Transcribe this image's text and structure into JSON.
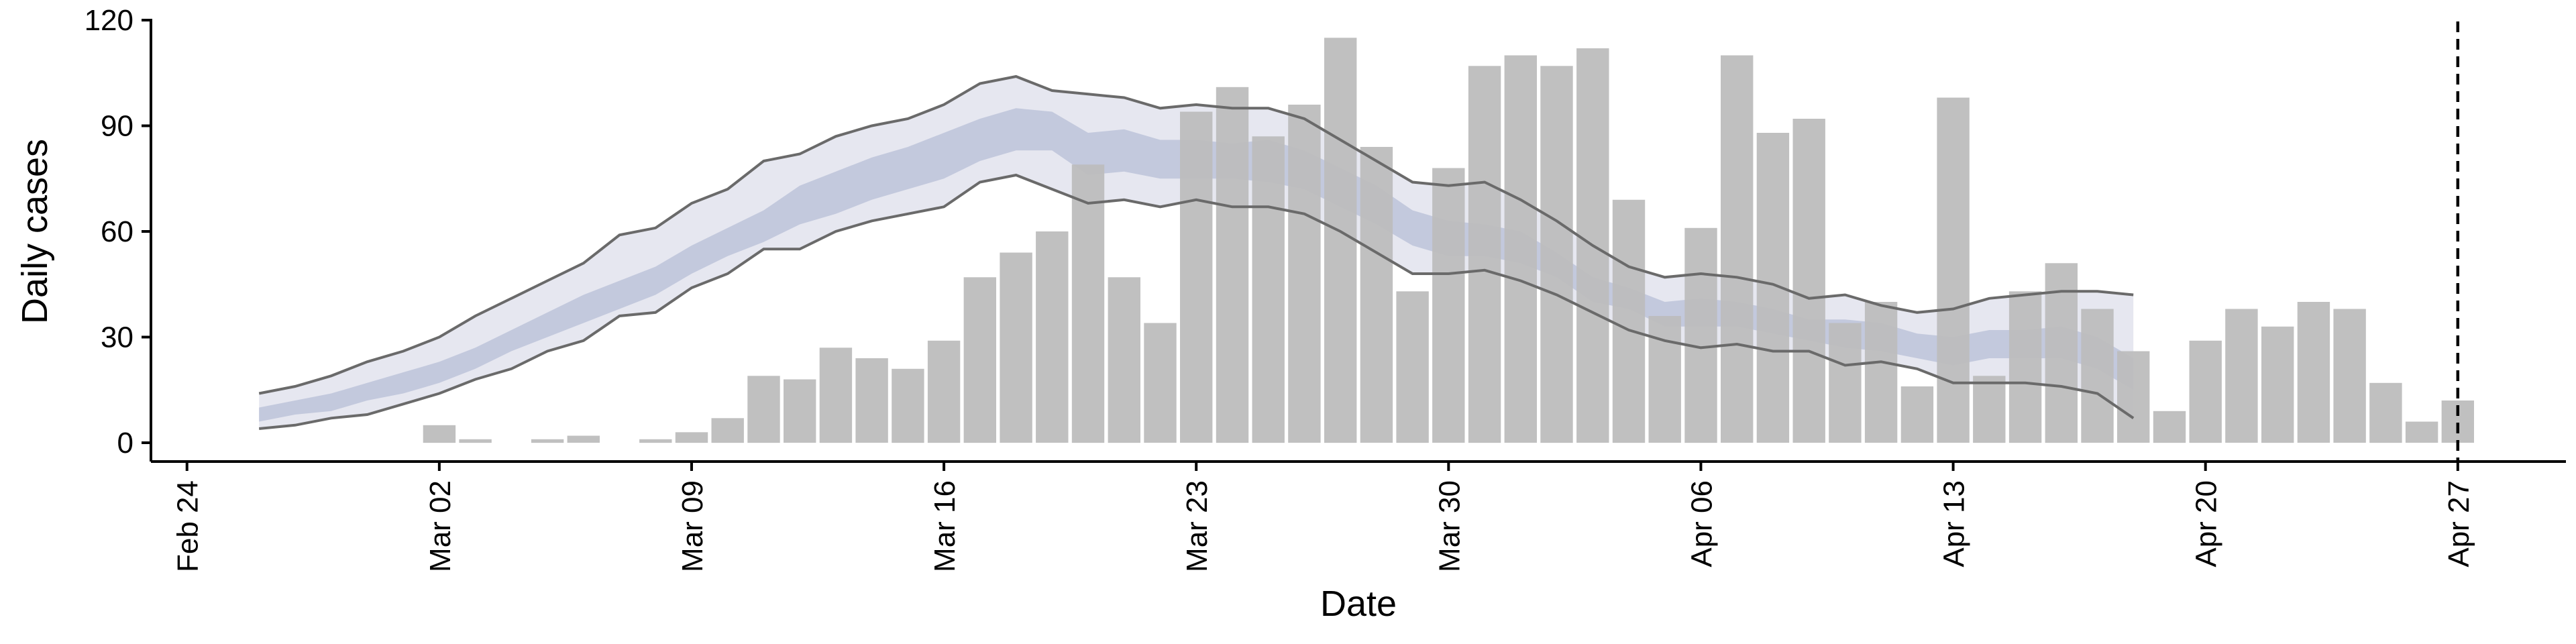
{
  "chart_data": {
    "type": "bar",
    "title": "",
    "xlabel": "Date",
    "ylabel": "Daily cases",
    "ylim": [
      0,
      120
    ],
    "yticks": [
      0,
      30,
      60,
      90,
      120
    ],
    "x_axis_type": "date",
    "year": 2020,
    "xlim": [
      "2020-02-23",
      "2020-04-30"
    ],
    "xticks": [
      {
        "date": "2020-02-24",
        "label": "Feb 24"
      },
      {
        "date": "2020-03-02",
        "label": "Mar 02"
      },
      {
        "date": "2020-03-09",
        "label": "Mar 09"
      },
      {
        "date": "2020-03-16",
        "label": "Mar 16"
      },
      {
        "date": "2020-03-23",
        "label": "Mar 23"
      },
      {
        "date": "2020-03-30",
        "label": "Mar 30"
      },
      {
        "date": "2020-04-06",
        "label": "Apr 06"
      },
      {
        "date": "2020-04-13",
        "label": "Apr 13"
      },
      {
        "date": "2020-04-20",
        "label": "Apr 20"
      },
      {
        "date": "2020-04-27",
        "label": "Apr 27"
      }
    ],
    "vertical_line_date": "2020-04-27",
    "grid": false,
    "colors": {
      "bars": "#bdbdbd",
      "outer_band": "#e6e7f0",
      "inner_band": "#c3c9dd",
      "outer_lines": "#6a6a6a",
      "vline": "#000000"
    },
    "bars": {
      "dates": [
        "2020-03-02",
        "2020-03-03",
        "2020-03-04",
        "2020-03-05",
        "2020-03-06",
        "2020-03-07",
        "2020-03-08",
        "2020-03-09",
        "2020-03-10",
        "2020-03-11",
        "2020-03-12",
        "2020-03-13",
        "2020-03-14",
        "2020-03-15",
        "2020-03-16",
        "2020-03-17",
        "2020-03-18",
        "2020-03-19",
        "2020-03-20",
        "2020-03-21",
        "2020-03-22",
        "2020-03-23",
        "2020-03-24",
        "2020-03-25",
        "2020-03-26",
        "2020-03-27",
        "2020-03-28",
        "2020-03-29",
        "2020-03-30",
        "2020-03-31",
        "2020-04-01",
        "2020-04-02",
        "2020-04-03",
        "2020-04-04",
        "2020-04-05",
        "2020-04-06",
        "2020-04-07",
        "2020-04-08",
        "2020-04-09",
        "2020-04-10",
        "2020-04-11",
        "2020-04-12",
        "2020-04-13",
        "2020-04-14",
        "2020-04-15",
        "2020-04-16",
        "2020-04-17",
        "2020-04-18",
        "2020-04-19",
        "2020-04-20",
        "2020-04-21",
        "2020-04-22",
        "2020-04-23",
        "2020-04-24",
        "2020-04-25",
        "2020-04-26",
        "2020-04-27"
      ],
      "values": [
        5,
        1,
        0,
        1,
        2,
        0,
        1,
        3,
        7,
        19,
        18,
        27,
        24,
        21,
        29,
        47,
        54,
        60,
        79,
        47,
        34,
        94,
        101,
        87,
        96,
        115,
        84,
        43,
        78,
        107,
        110,
        107,
        112,
        69,
        36,
        61,
        110,
        88,
        92,
        34,
        40,
        16,
        98,
        19,
        43,
        51,
        38,
        26,
        9,
        29,
        38,
        33,
        40,
        38,
        17,
        6,
        12
      ]
    },
    "bands": {
      "dates": [
        "2020-02-26",
        "2020-02-27",
        "2020-02-28",
        "2020-02-29",
        "2020-03-01",
        "2020-03-02",
        "2020-03-03",
        "2020-03-04",
        "2020-03-05",
        "2020-03-06",
        "2020-03-07",
        "2020-03-08",
        "2020-03-09",
        "2020-03-10",
        "2020-03-11",
        "2020-03-12",
        "2020-03-13",
        "2020-03-14",
        "2020-03-15",
        "2020-03-16",
        "2020-03-17",
        "2020-03-18",
        "2020-03-19",
        "2020-03-20",
        "2020-03-21",
        "2020-03-22",
        "2020-03-23",
        "2020-03-24",
        "2020-03-25",
        "2020-03-26",
        "2020-03-27",
        "2020-03-28",
        "2020-03-29",
        "2020-03-30",
        "2020-03-31",
        "2020-04-01",
        "2020-04-02",
        "2020-04-03",
        "2020-04-04",
        "2020-04-05",
        "2020-04-06",
        "2020-04-07",
        "2020-04-08",
        "2020-04-09",
        "2020-04-10",
        "2020-04-11",
        "2020-04-12",
        "2020-04-13",
        "2020-04-14",
        "2020-04-15",
        "2020-04-16",
        "2020-04-17",
        "2020-04-18"
      ],
      "outer_upper": [
        14,
        16,
        19,
        23,
        26,
        30,
        36,
        41,
        46,
        51,
        59,
        61,
        68,
        72,
        80,
        82,
        87,
        90,
        92,
        96,
        102,
        104,
        100,
        99,
        98,
        95,
        96,
        95,
        95,
        92,
        86,
        80,
        74,
        73,
        74,
        69,
        63,
        56,
        50,
        47,
        48,
        47,
        45,
        41,
        42,
        39,
        37,
        38,
        41,
        42,
        43,
        43,
        42
      ],
      "outer_lower": [
        4,
        5,
        7,
        8,
        11,
        14,
        18,
        21,
        26,
        29,
        36,
        37,
        44,
        48,
        55,
        55,
        60,
        63,
        65,
        67,
        74,
        76,
        72,
        68,
        69,
        67,
        69,
        67,
        67,
        65,
        60,
        54,
        48,
        48,
        49,
        46,
        42,
        37,
        32,
        29,
        27,
        28,
        26,
        26,
        22,
        23,
        21,
        17,
        17,
        17,
        16,
        14,
        7
      ],
      "inner_upper": [
        10,
        12,
        14,
        17,
        20,
        23,
        27,
        32,
        37,
        42,
        46,
        50,
        56,
        61,
        66,
        73,
        77,
        81,
        84,
        88,
        92,
        95,
        94,
        88,
        89,
        86,
        86,
        85,
        86,
        83,
        78,
        73,
        66,
        63,
        62,
        60,
        54,
        47,
        44,
        40,
        41,
        40,
        38,
        35,
        35,
        34,
        31,
        30,
        32,
        32,
        33,
        30,
        24
      ],
      "inner_lower": [
        6,
        8,
        9,
        12,
        14,
        17,
        21,
        26,
        30,
        34,
        38,
        42,
        48,
        53,
        57,
        62,
        65,
        69,
        72,
        75,
        80,
        83,
        83,
        76,
        77,
        75,
        75,
        75,
        74,
        72,
        67,
        62,
        56,
        53,
        53,
        51,
        47,
        40,
        38,
        33,
        33,
        33,
        31,
        29,
        27,
        26,
        24,
        22,
        24,
        24,
        24,
        21,
        15
      ]
    }
  }
}
